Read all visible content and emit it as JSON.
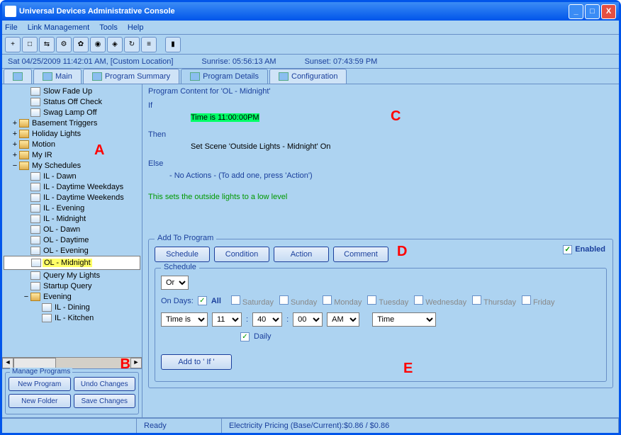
{
  "window": {
    "title": "Universal Devices Administrative Console"
  },
  "menu": {
    "file": "File",
    "link": "Link Management",
    "tools": "Tools",
    "help": "Help"
  },
  "toolbar_icons": [
    "+",
    "□",
    "⇆",
    "⚙",
    "✿",
    "◉",
    "◈",
    "↻",
    "≡",
    "",
    "▮"
  ],
  "status": {
    "datetime": "Sat 04/25/2009 11:42:01 AM,  [Custom Location]",
    "sunrise": "Sunrise: 05:56:13 AM",
    "sunset": "Sunset: 07:43:59 PM"
  },
  "tabs": {
    "home": "",
    "main": "Main",
    "summary": "Program Summary",
    "details": "Program Details",
    "config": "Configuration"
  },
  "tree": {
    "items": [
      {
        "indent": 1,
        "exp": "",
        "icon": "file",
        "label": "Slow Fade Up"
      },
      {
        "indent": 1,
        "exp": "",
        "icon": "file",
        "label": "Status Off Check"
      },
      {
        "indent": 1,
        "exp": "",
        "icon": "file",
        "label": "Swag Lamp Off"
      },
      {
        "indent": 0,
        "exp": "+",
        "icon": "folder",
        "label": "Basement Triggers"
      },
      {
        "indent": 0,
        "exp": "+",
        "icon": "folder",
        "label": "Holiday Lights"
      },
      {
        "indent": 0,
        "exp": "+",
        "icon": "folder",
        "label": "Motion"
      },
      {
        "indent": 0,
        "exp": "+",
        "icon": "folder",
        "label": "My IR"
      },
      {
        "indent": 0,
        "exp": "−",
        "icon": "folder",
        "label": "My Schedules"
      },
      {
        "indent": 1,
        "exp": "",
        "icon": "file",
        "label": "IL - Dawn"
      },
      {
        "indent": 1,
        "exp": "",
        "icon": "file",
        "label": "IL - Daytime Weekdays"
      },
      {
        "indent": 1,
        "exp": "",
        "icon": "file",
        "label": "IL - Daytime Weekends"
      },
      {
        "indent": 1,
        "exp": "",
        "icon": "file",
        "label": "IL - Evening"
      },
      {
        "indent": 1,
        "exp": "",
        "icon": "file",
        "label": "IL - Midnight"
      },
      {
        "indent": 1,
        "exp": "",
        "icon": "file",
        "label": "OL - Dawn"
      },
      {
        "indent": 1,
        "exp": "",
        "icon": "file",
        "label": "OL - Daytime"
      },
      {
        "indent": 1,
        "exp": "",
        "icon": "file",
        "label": "OL - Evening"
      },
      {
        "indent": 1,
        "exp": "",
        "icon": "file",
        "label": "OL - Midnight",
        "sel": true
      },
      {
        "indent": 1,
        "exp": "",
        "icon": "file",
        "label": "Query My Lights"
      },
      {
        "indent": 1,
        "exp": "",
        "icon": "file",
        "label": "Startup Query"
      },
      {
        "indent": 1,
        "exp": "−",
        "icon": "folder",
        "label": "Evening"
      },
      {
        "indent": 2,
        "exp": "",
        "icon": "file",
        "label": "IL - Dining"
      },
      {
        "indent": 2,
        "exp": "",
        "icon": "file",
        "label": "IL - Kitchen"
      }
    ]
  },
  "manage": {
    "title": "Manage Programs",
    "new_program": "New Program",
    "undo": "Undo Changes",
    "new_folder": "New Folder",
    "save": "Save Changes"
  },
  "program": {
    "title": "Program Content for 'OL - Midnight'",
    "if": "If",
    "if_cond": "Time is 11:00:00PM",
    "then": "Then",
    "then_action": "Set Scene 'Outside Lights - Midnight' On",
    "else": "Else",
    "else_action": "- No Actions - (To add one, press 'Action')",
    "comment": "This sets the outside lights to a low level"
  },
  "add": {
    "title": "Add To Program",
    "schedule_btn": "Schedule",
    "condition_btn": "Condition",
    "action_btn": "Action",
    "comment_btn": "Comment",
    "enabled": "Enabled",
    "schedule_title": "Schedule",
    "op": "Or",
    "on_days": "On Days:",
    "all": "All",
    "days": [
      "Saturday",
      "Sunday",
      "Monday",
      "Tuesday",
      "Wednesday",
      "Thursday",
      "Friday"
    ],
    "time_is": "Time is",
    "h": "11",
    "m": "40",
    "s": "00",
    "ampm": "AM",
    "time_lbl": "Time",
    "daily": "Daily",
    "add_to_if": "Add to ' If '"
  },
  "statusbar": {
    "ready": "Ready",
    "pricing": "Electricity Pricing (Base/Current):$0.86 / $0.86"
  },
  "annotations": {
    "a": "A",
    "b": "B",
    "c": "C",
    "d": "D",
    "e": "E"
  }
}
